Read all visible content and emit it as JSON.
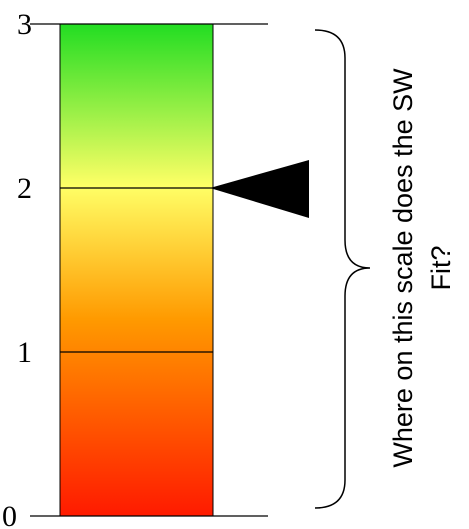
{
  "scale": {
    "min": 0,
    "max": 3,
    "ticks": [
      {
        "value": 0,
        "label": "0"
      },
      {
        "value": 1,
        "label": "1"
      },
      {
        "value": 2,
        "label": "2"
      },
      {
        "value": 3,
        "label": "3"
      }
    ],
    "gradient": {
      "bottom_color": "#ff1a00",
      "lower_mid_color": "#ff9a00",
      "upper_mid_color": "#ffff66",
      "top_color": "#22dd22"
    },
    "pointer_value": 2
  },
  "question": {
    "line1": "Where on this scale does the SW",
    "line2": "Fit?"
  }
}
